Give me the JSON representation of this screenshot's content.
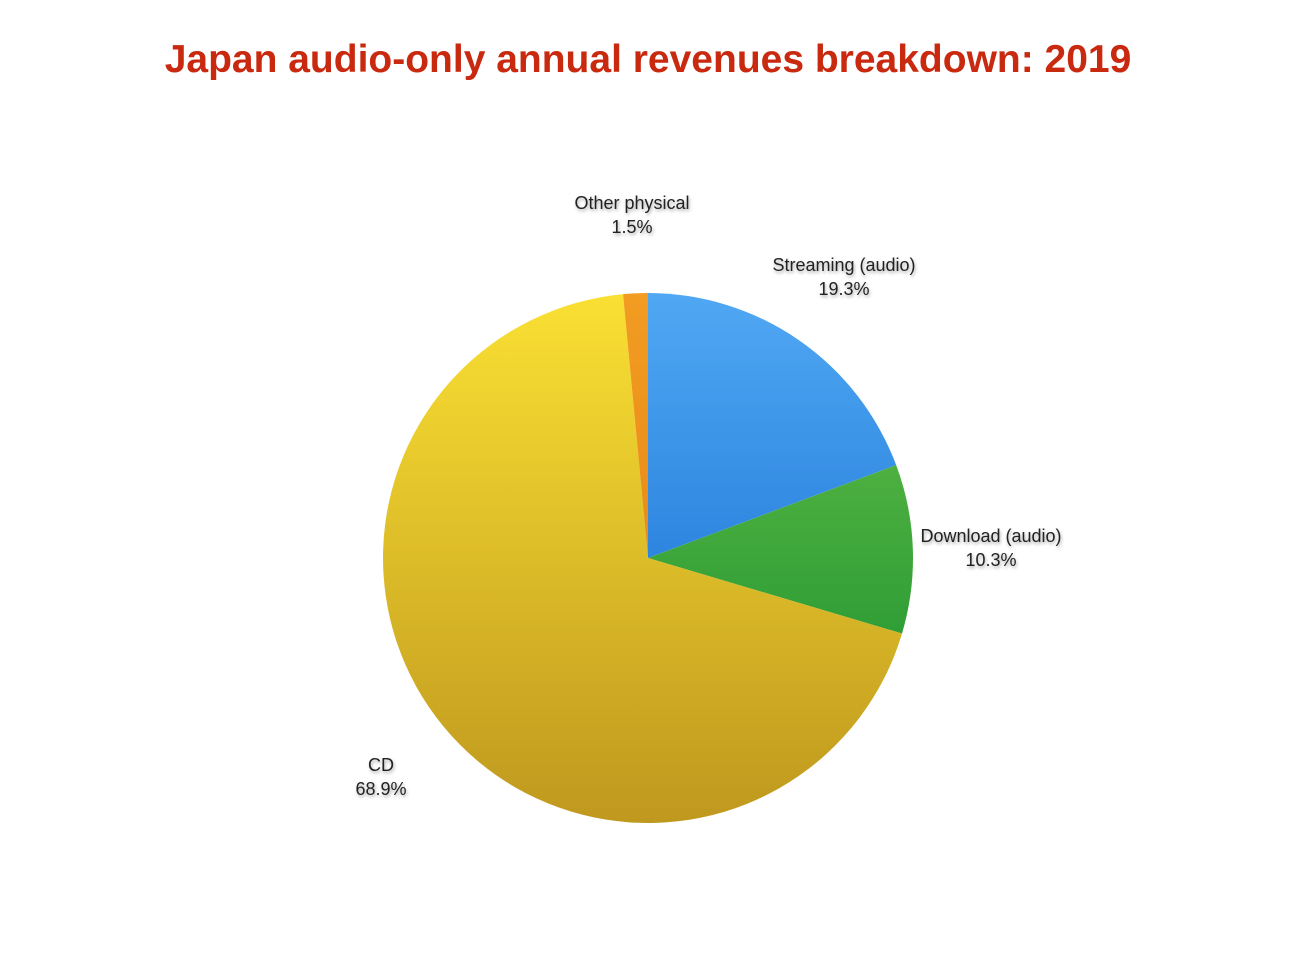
{
  "chart_data": {
    "type": "pie",
    "title": "Japan audio-only annual revenues breakdown: 2019",
    "start_angle": "12 o'clock",
    "direction": "clockwise",
    "slices": [
      {
        "label": "Streaming (audio)",
        "value": 19.3,
        "display": "19.3%",
        "color_top": "#50a8f4",
        "color_bottom": "#0b62c9"
      },
      {
        "label": "Download (audio)",
        "value": 10.3,
        "display": "10.3%",
        "color_top": "#6cc24a",
        "color_bottom": "#0e8a2b"
      },
      {
        "label": "CD",
        "value": 68.9,
        "display": "68.9%",
        "color_top": "#fae033",
        "color_bottom": "#bf981e"
      },
      {
        "label": "Other physical",
        "value": 1.5,
        "display": "1.5%",
        "color_top": "#f29c22",
        "color_bottom": "#e07a10"
      }
    ]
  }
}
